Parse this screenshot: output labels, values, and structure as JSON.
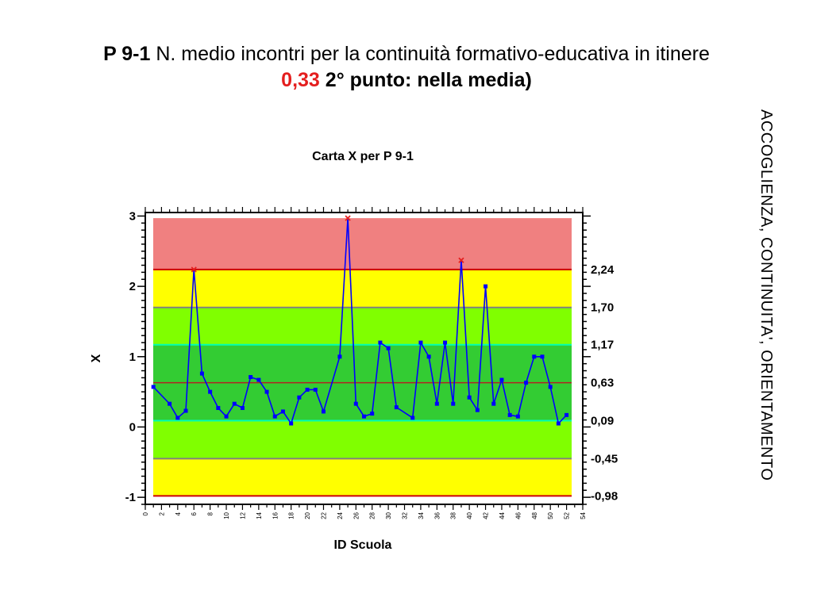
{
  "slide": {
    "title_code": "P 9-1",
    "title_text": "N. medio incontri per la continuità formativo-educativa in itinere",
    "value": "0,33",
    "value_note": "2° punto: nella media)",
    "side_label": "ACCOGLIENZA, CONTINUITA', ORIENTAMENTO"
  },
  "colors": {
    "red_zone": "#f08080",
    "yellow_zone": "#ffff00",
    "light_green_zone": "#80ff00",
    "dark_green_zone": "#33cc33",
    "series_line": "#0000ff",
    "out_of_control_marker": "#e41e1e",
    "center_line": "#b22222",
    "sigma1_line": "#00ffb4",
    "sigma2_line": "#808080",
    "control_limit_line": "#cc0000",
    "value_red": "#e41e1e"
  },
  "chart_data": {
    "type": "line",
    "title": "Carta X per P 9-1",
    "xlabel": "ID Scuola",
    "ylabel": "X",
    "xlim": [
      0,
      54
    ],
    "ylim": [
      -1.1,
      3.05
    ],
    "yticks": [
      -1,
      0,
      1,
      2,
      3
    ],
    "xticks": [
      0,
      2,
      4,
      6,
      8,
      10,
      12,
      14,
      16,
      18,
      20,
      22,
      24,
      26,
      28,
      30,
      32,
      34,
      36,
      38,
      40,
      42,
      44,
      46,
      48,
      50,
      52,
      54
    ],
    "limits": [
      {
        "label": "2,24",
        "value": 2.24
      },
      {
        "label": "1,70",
        "value": 1.7
      },
      {
        "label": "1,17",
        "value": 1.17
      },
      {
        "label": "0,63",
        "value": 0.63
      },
      {
        "label": "0,09",
        "value": 0.09
      },
      {
        "label": "-0,45",
        "value": -0.45
      },
      {
        "label": "-0,98",
        "value": -0.98
      }
    ],
    "upper_zone_top": 2.97,
    "series": [
      {
        "x": [
          1,
          3,
          4,
          5,
          6,
          7,
          8,
          9,
          10,
          11,
          12,
          13,
          14,
          15,
          16,
          17,
          18,
          19,
          20,
          21,
          22,
          24,
          25,
          26,
          27,
          28,
          29,
          30,
          31,
          33,
          34,
          35,
          36,
          37,
          38,
          39,
          40,
          41,
          42,
          43,
          44,
          45,
          46,
          47,
          48,
          49,
          50,
          51,
          52
        ],
        "y": [
          0.57,
          0.33,
          0.13,
          0.23,
          2.24,
          0.76,
          0.5,
          0.27,
          0.15,
          0.33,
          0.27,
          0.71,
          0.67,
          0.5,
          0.15,
          0.22,
          0.05,
          0.42,
          0.53,
          0.53,
          0.22,
          1.0,
          2.97,
          0.33,
          0.15,
          0.19,
          1.2,
          1.12,
          0.28,
          0.13,
          1.2,
          1.0,
          0.33,
          1.2,
          0.33,
          2.37,
          0.42,
          0.24,
          2.0,
          0.33,
          0.67,
          0.17,
          0.15,
          0.63,
          1.0,
          1.0,
          0.57,
          0.05,
          0.17
        ]
      }
    ]
  }
}
